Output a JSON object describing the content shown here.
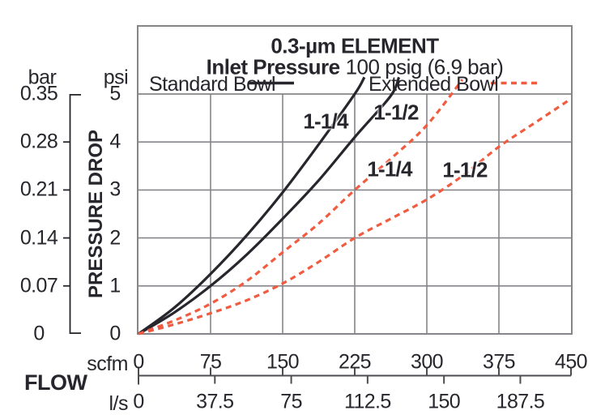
{
  "title": {
    "line1": "0.3-µm ELEMENT",
    "line2_bold": "Inlet Pressure",
    "line2_rest": "100 psig (6.9 bar)"
  },
  "legend": {
    "standard": "Standard Bowl",
    "extended": "Extended Bowl"
  },
  "axes": {
    "y_unit_left": "bar",
    "y_unit_right": "psi",
    "y_label": "PRESSURE DROP",
    "x_label": "FLOW",
    "x_unit_top": "scfm",
    "x_unit_bottom": "l/s"
  },
  "colors": {
    "standard_curve": "#26262c",
    "extended_curve": "#f15b40",
    "grid": "#86868a",
    "scale_line": "#4e4e52",
    "text": "#26262c"
  },
  "chart_data": {
    "type": "line",
    "title": "0.3-µm ELEMENT",
    "subtitle": "Inlet Pressure 100 psig (6.9 bar)",
    "xlabel": "FLOW",
    "ylabel": "PRESSURE DROP",
    "x_units": [
      "scfm",
      "l/s"
    ],
    "y_units": [
      "psi",
      "bar"
    ],
    "x_ticks_scfm": [
      0,
      75,
      150,
      225,
      300,
      375,
      450
    ],
    "x_ticks_ls": [
      0,
      37.5,
      75,
      112.5,
      150,
      187.5
    ],
    "y_ticks_psi": [
      0,
      1,
      2,
      3,
      4,
      5
    ],
    "y_ticks_bar": [
      "0",
      "0.07",
      "0.14",
      "0.21",
      "0.28",
      "0.35"
    ],
    "x_range_scfm": [
      0,
      450
    ],
    "y_range_psi": [
      0,
      5
    ],
    "ls_to_scfm": 2.1189,
    "grid": true,
    "legend_position": "top",
    "series": [
      {
        "id": "std-114",
        "group": "Standard Bowl",
        "label": "1-1/4",
        "style": "solid",
        "color": "#26262c",
        "points_scfm_psi": [
          [
            0,
            0
          ],
          [
            37.5,
            0.55
          ],
          [
            75,
            1.25
          ],
          [
            112.5,
            2.05
          ],
          [
            150,
            2.95
          ],
          [
            187.5,
            3.95
          ],
          [
            225,
            5.0
          ],
          [
            235,
            5.35
          ]
        ]
      },
      {
        "id": "std-112",
        "group": "Standard Bowl",
        "label": "1-1/2",
        "style": "solid",
        "color": "#26262c",
        "points_scfm_psi": [
          [
            0,
            0
          ],
          [
            37.5,
            0.45
          ],
          [
            75,
            1.0
          ],
          [
            112.5,
            1.65
          ],
          [
            150,
            2.4
          ],
          [
            187.5,
            3.2
          ],
          [
            225,
            4.1
          ],
          [
            262,
            4.95
          ],
          [
            271,
            5.35
          ]
        ]
      },
      {
        "id": "ext-114",
        "group": "Extended Bowl",
        "label": "1-1/4",
        "style": "dashed",
        "color": "#f15b40",
        "points_scfm_psi": [
          [
            0,
            0
          ],
          [
            37.5,
            0.28
          ],
          [
            75,
            0.63
          ],
          [
            112.5,
            1.1
          ],
          [
            150,
            1.7
          ],
          [
            187.5,
            2.3
          ],
          [
            225,
            3.0
          ],
          [
            262.5,
            3.65
          ],
          [
            300,
            4.35
          ],
          [
            337,
            5.3
          ]
        ]
      },
      {
        "id": "ext-112",
        "group": "Extended Bowl",
        "label": "1-1/2",
        "style": "dashed",
        "color": "#f15b40",
        "points_scfm_psi": [
          [
            0,
            0
          ],
          [
            37.5,
            0.2
          ],
          [
            75,
            0.43
          ],
          [
            112.5,
            0.7
          ],
          [
            150,
            1.05
          ],
          [
            187.5,
            1.5
          ],
          [
            225,
            2.0
          ],
          [
            262.5,
            2.4
          ],
          [
            300,
            2.8
          ],
          [
            337.5,
            3.3
          ],
          [
            375,
            3.9
          ],
          [
            412.5,
            4.4
          ],
          [
            450,
            4.9
          ]
        ]
      }
    ]
  }
}
